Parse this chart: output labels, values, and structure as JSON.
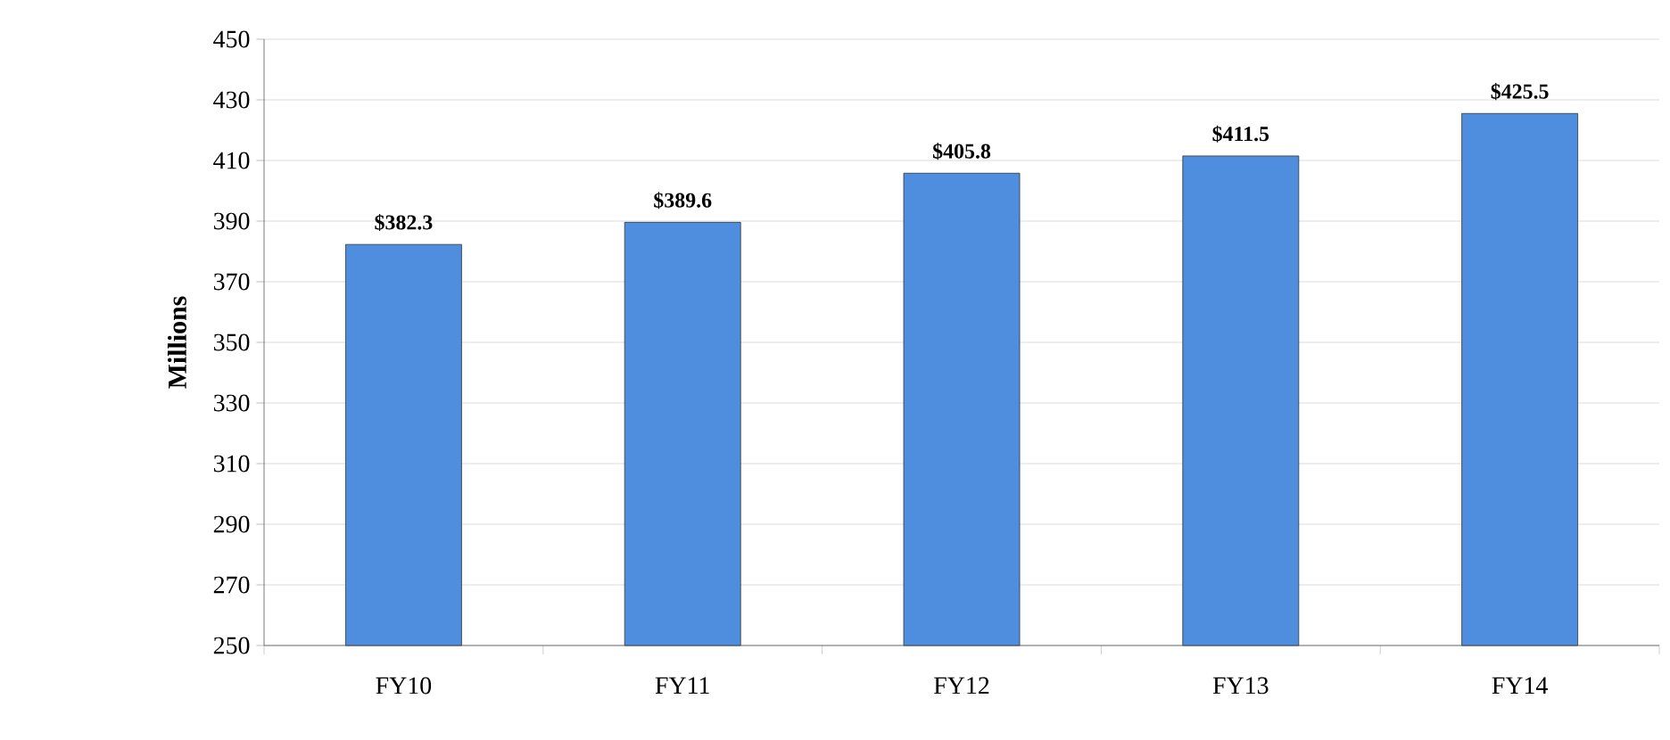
{
  "chart_data": {
    "type": "bar",
    "ylabel": "Millions",
    "categories": [
      "FY10",
      "FY11",
      "FY12",
      "FY13",
      "FY14"
    ],
    "values": [
      382.3,
      389.6,
      405.8,
      411.5,
      425.5
    ],
    "value_labels": [
      "$382.3",
      "$389.6",
      "$405.8",
      "$411.5",
      "$425.5"
    ],
    "color": "#4f8ddf",
    "ylim": [
      250,
      450
    ],
    "yticks": [
      250,
      270,
      290,
      310,
      330,
      350,
      370,
      390,
      410,
      430,
      450
    ],
    "grid": "y"
  }
}
